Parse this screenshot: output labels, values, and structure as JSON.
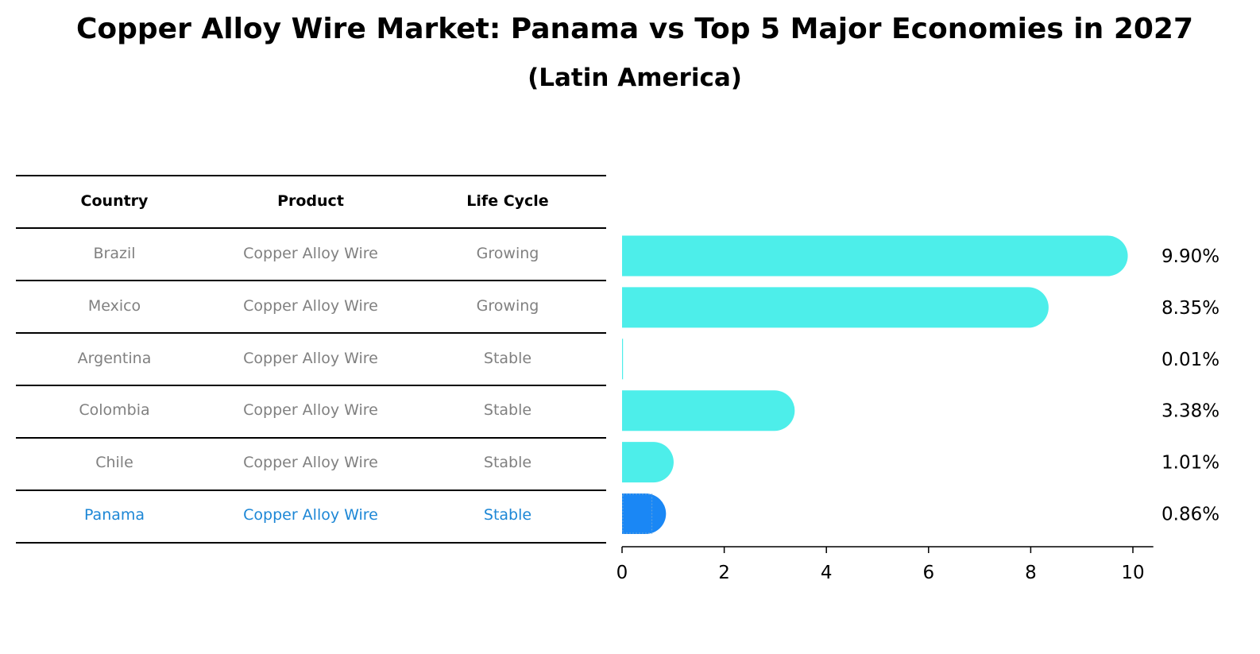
{
  "title": "Copper Alloy Wire Market: Panama vs Top 5 Major Economies in 2027",
  "subtitle": "(Latin America)",
  "table": {
    "headers": [
      "Country",
      "Product",
      "Life Cycle"
    ],
    "rows": [
      {
        "country": "Brazil",
        "product": "Copper Alloy Wire",
        "life_cycle": "Growing",
        "highlight": false
      },
      {
        "country": "Mexico",
        "product": "Copper Alloy Wire",
        "life_cycle": "Growing",
        "highlight": false
      },
      {
        "country": "Argentina",
        "product": "Copper Alloy Wire",
        "life_cycle": "Stable",
        "highlight": false
      },
      {
        "country": "Colombia",
        "product": "Copper Alloy Wire",
        "life_cycle": "Stable",
        "highlight": false
      },
      {
        "country": "Chile",
        "product": "Copper Alloy Wire",
        "life_cycle": "Stable",
        "highlight": false
      },
      {
        "country": "Panama",
        "product": "Copper Alloy Wire",
        "life_cycle": "Stable",
        "highlight": true
      }
    ]
  },
  "chart_data": {
    "type": "bar",
    "orientation": "horizontal",
    "categories": [
      "Brazil",
      "Mexico",
      "Argentina",
      "Colombia",
      "Chile",
      "Panama"
    ],
    "values": [
      9.9,
      8.35,
      0.01,
      3.38,
      1.01,
      0.86
    ],
    "value_labels": [
      "9.90%",
      "8.35%",
      "0.01%",
      "3.38%",
      "1.01%",
      "0.86%"
    ],
    "xlim": [
      0,
      10.4
    ],
    "xticks": [
      0,
      2,
      4,
      6,
      8,
      10
    ],
    "xtick_labels": [
      "0",
      "2",
      "4",
      "6",
      "8",
      "10"
    ],
    "xlabel": "",
    "ylabel": "",
    "grid": false
  },
  "colors": {
    "bar": "#4deeea",
    "highlight_bar": "#1a87f5",
    "highlight_text": "#1d87d6",
    "muted_text": "#808080"
  }
}
